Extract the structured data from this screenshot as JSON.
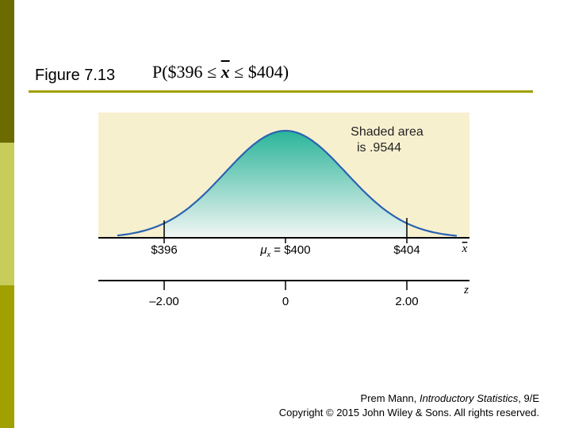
{
  "slide": {
    "figure_label": "Figure 7.13",
    "formula": {
      "prefix": "P($396",
      "leq1": "≤",
      "xbar": "x",
      "leq2": "≤",
      "suffix": "$404)"
    },
    "accent_color": "#a0a000"
  },
  "figure": {
    "annotation_line1": "Shaded area",
    "annotation_line2": "is .9544",
    "x_axis": {
      "labels": [
        "$396",
        "$400",
        "$404"
      ],
      "mean_label_prefix": "μ",
      "mean_label_sub": "x",
      "mean_label_suffix": " = $400",
      "var_label": "x"
    },
    "z_axis": {
      "labels": [
        "–2.00",
        "0",
        "2.00"
      ],
      "var_label": "z"
    },
    "panel_color": "#f7f0cf",
    "curve_color": "#2b63b0",
    "shade_top_color": "#2ab49a",
    "shade_bottom_color": "#f2f6f4"
  },
  "credit": {
    "author": "Prem Mann, ",
    "book_title": "Introductory Statistics",
    "edition": ", 9/E",
    "copyright": "Copyright © 2015 John Wiley & Sons. All rights reserved."
  }
}
